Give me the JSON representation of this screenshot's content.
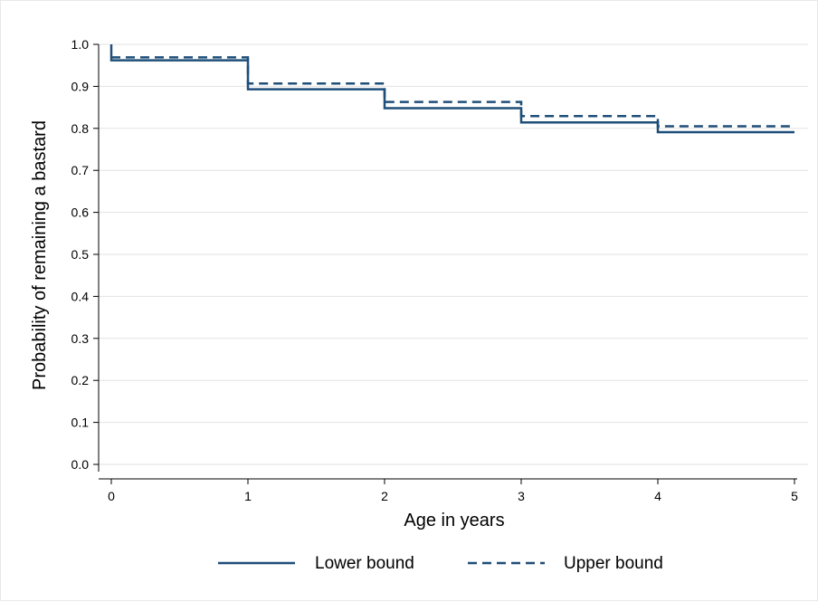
{
  "chart_data": {
    "type": "line",
    "title": "",
    "xlabel": "Age in years",
    "ylabel": "Probability of remaining a bastard",
    "xlim": [
      0,
      5
    ],
    "ylim": [
      0,
      1
    ],
    "x_ticks": [
      "0",
      "1",
      "2",
      "3",
      "4",
      "5"
    ],
    "y_ticks": [
      "0.0",
      "0.1",
      "0.2",
      "0.3",
      "0.4",
      "0.5",
      "0.6",
      "0.7",
      "0.8",
      "0.9",
      "1.0"
    ],
    "grid": "horizontal",
    "legend_placement": "bottom",
    "color": "#1f4e79",
    "series": [
      {
        "name": "Lower bound",
        "style": "solid",
        "step": [
          {
            "x": 0,
            "y": 1.0
          },
          {
            "x": 0,
            "y": 0.962
          },
          {
            "x": 1,
            "y": 0.962
          },
          {
            "x": 1,
            "y": 0.893
          },
          {
            "x": 2,
            "y": 0.893
          },
          {
            "x": 2,
            "y": 0.848
          },
          {
            "x": 3,
            "y": 0.848
          },
          {
            "x": 3,
            "y": 0.814
          },
          {
            "x": 4,
            "y": 0.814
          },
          {
            "x": 4,
            "y": 0.791
          },
          {
            "x": 5,
            "y": 0.791
          }
        ]
      },
      {
        "name": "Upper bound",
        "style": "dashed",
        "step": [
          {
            "x": 0,
            "y": 0.969
          },
          {
            "x": 1,
            "y": 0.969
          },
          {
            "x": 1,
            "y": 0.907
          },
          {
            "x": 2,
            "y": 0.907
          },
          {
            "x": 2,
            "y": 0.863
          },
          {
            "x": 3,
            "y": 0.863
          },
          {
            "x": 3,
            "y": 0.829
          },
          {
            "x": 4,
            "y": 0.829
          },
          {
            "x": 4,
            "y": 0.805
          },
          {
            "x": 5,
            "y": 0.805
          }
        ]
      }
    ]
  }
}
